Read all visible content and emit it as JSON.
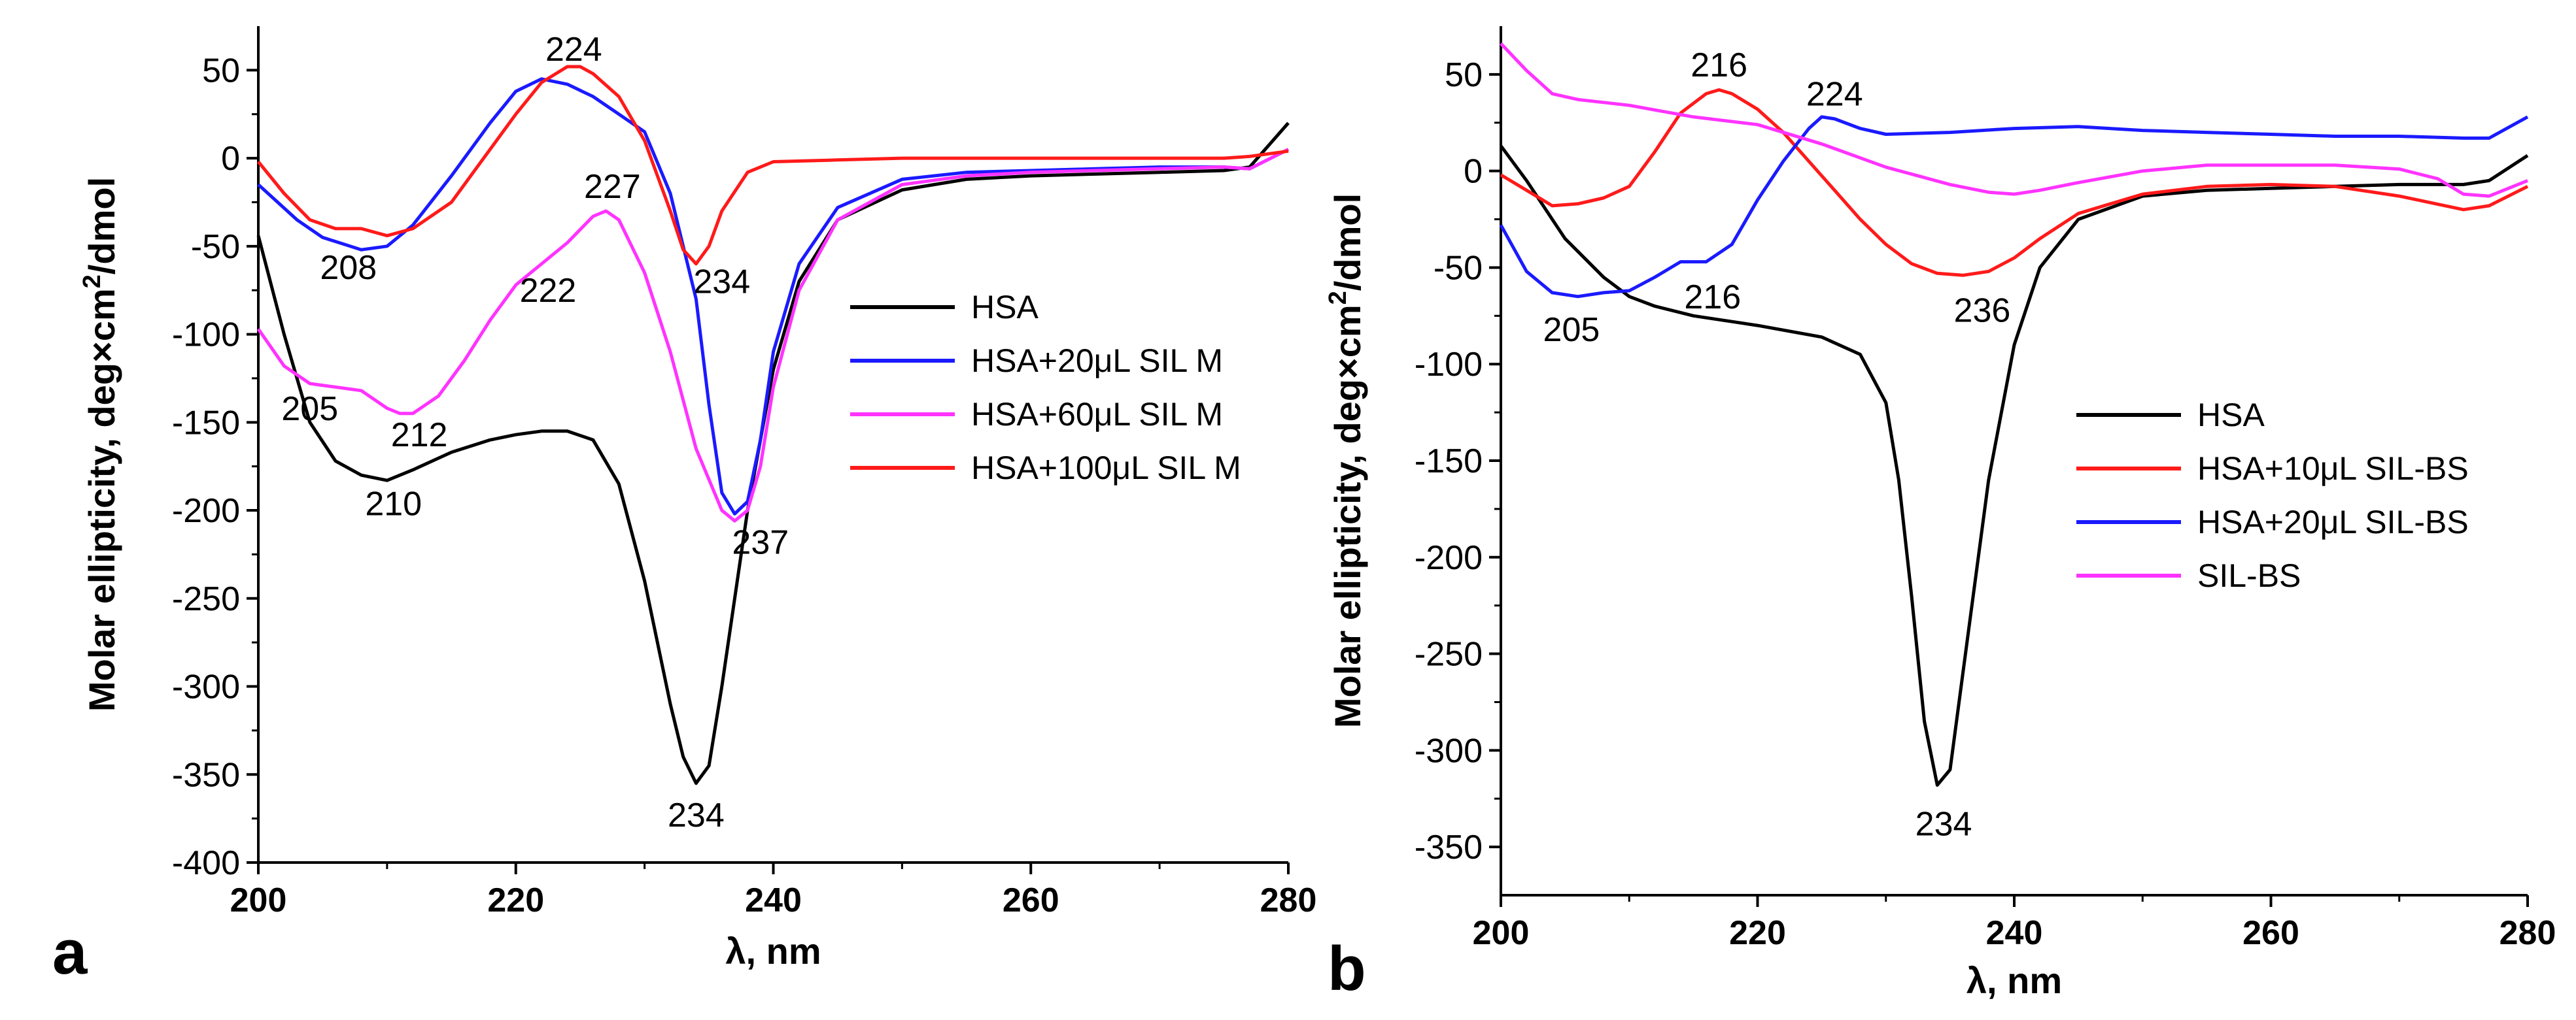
{
  "chart_data": [
    {
      "type": "line",
      "panel_label": "a",
      "title": "",
      "xlabel": "λ, nm",
      "ylabel_prefix": "Molar ellipticity, deg×cm",
      "ylabel_sup": "2",
      "ylabel_suffix": "/dmol",
      "xlim": [
        200,
        280
      ],
      "ylim": [
        -400,
        75
      ],
      "x_ticks": [
        200,
        220,
        240,
        260,
        280
      ],
      "y_ticks": [
        50,
        0,
        -50,
        -100,
        -150,
        -200,
        -250,
        -300,
        -350,
        -400
      ],
      "grid": false,
      "legend_position": "center-right",
      "series": [
        {
          "name": "HSA",
          "color": "#000000",
          "points": [
            [
              200,
              -44
            ],
            [
              202,
              -100
            ],
            [
              204,
              -150
            ],
            [
              206,
              -172
            ],
            [
              208,
              -180
            ],
            [
              210,
              -183
            ],
            [
              212,
              -177
            ],
            [
              215,
              -167
            ],
            [
              218,
              -160
            ],
            [
              220,
              -157
            ],
            [
              222,
              -155
            ],
            [
              224,
              -155
            ],
            [
              226,
              -160
            ],
            [
              228,
              -185
            ],
            [
              230,
              -240
            ],
            [
              232,
              -310
            ],
            [
              233,
              -340
            ],
            [
              234,
              -355
            ],
            [
              235,
              -345
            ],
            [
              236,
              -300
            ],
            [
              238,
              -200
            ],
            [
              240,
              -120
            ],
            [
              242,
              -70
            ],
            [
              245,
              -35
            ],
            [
              250,
              -18
            ],
            [
              255,
              -12
            ],
            [
              260,
              -10
            ],
            [
              265,
              -9
            ],
            [
              270,
              -8
            ],
            [
              275,
              -7
            ],
            [
              277,
              -5
            ],
            [
              280,
              20
            ]
          ]
        },
        {
          "name": "HSA+20μL SIL M",
          "color": "#1a1aff",
          "points": [
            [
              200,
              -15
            ],
            [
              203,
              -35
            ],
            [
              205,
              -45
            ],
            [
              208,
              -52
            ],
            [
              210,
              -50
            ],
            [
              212,
              -38
            ],
            [
              215,
              -10
            ],
            [
              218,
              20
            ],
            [
              220,
              38
            ],
            [
              222,
              45
            ],
            [
              224,
              42
            ],
            [
              226,
              35
            ],
            [
              228,
              25
            ],
            [
              230,
              15
            ],
            [
              232,
              -20
            ],
            [
              234,
              -80
            ],
            [
              235,
              -140
            ],
            [
              236,
              -190
            ],
            [
              237,
              -202
            ],
            [
              238,
              -195
            ],
            [
              239,
              -160
            ],
            [
              240,
              -110
            ],
            [
              242,
              -60
            ],
            [
              245,
              -28
            ],
            [
              250,
              -12
            ],
            [
              255,
              -8
            ],
            [
              260,
              -7
            ],
            [
              265,
              -6
            ],
            [
              270,
              -5
            ],
            [
              275,
              -5
            ],
            [
              277,
              -6
            ],
            [
              280,
              5
            ]
          ]
        },
        {
          "name": "HSA+60μL SIL M",
          "color": "#ff33ff",
          "points": [
            [
              200,
              -97
            ],
            [
              202,
              -118
            ],
            [
              204,
              -128
            ],
            [
              206,
              -130
            ],
            [
              208,
              -132
            ],
            [
              210,
              -142
            ],
            [
              211,
              -145
            ],
            [
              212,
              -145
            ],
            [
              214,
              -135
            ],
            [
              216,
              -115
            ],
            [
              218,
              -92
            ],
            [
              220,
              -72
            ],
            [
              222,
              -60
            ],
            [
              224,
              -48
            ],
            [
              226,
              -33
            ],
            [
              227,
              -30
            ],
            [
              228,
              -35
            ],
            [
              230,
              -65
            ],
            [
              232,
              -110
            ],
            [
              234,
              -165
            ],
            [
              236,
              -200
            ],
            [
              237,
              -206
            ],
            [
              238,
              -200
            ],
            [
              239,
              -175
            ],
            [
              240,
              -130
            ],
            [
              242,
              -75
            ],
            [
              245,
              -35
            ],
            [
              250,
              -15
            ],
            [
              255,
              -10
            ],
            [
              260,
              -8
            ],
            [
              265,
              -7
            ],
            [
              270,
              -6
            ],
            [
              275,
              -5
            ],
            [
              277,
              -6
            ],
            [
              280,
              5
            ]
          ]
        },
        {
          "name": "HSA+100μL SIL M",
          "color": "#ff1a1a",
          "points": [
            [
              200,
              -2
            ],
            [
              202,
              -20
            ],
            [
              204,
              -35
            ],
            [
              206,
              -40
            ],
            [
              208,
              -40
            ],
            [
              210,
              -44
            ],
            [
              212,
              -40
            ],
            [
              215,
              -25
            ],
            [
              218,
              5
            ],
            [
              220,
              25
            ],
            [
              222,
              43
            ],
            [
              224,
              52
            ],
            [
              225,
              52
            ],
            [
              226,
              48
            ],
            [
              228,
              35
            ],
            [
              230,
              10
            ],
            [
              232,
              -30
            ],
            [
              233,
              -52
            ],
            [
              234,
              -60
            ],
            [
              235,
              -50
            ],
            [
              236,
              -30
            ],
            [
              238,
              -8
            ],
            [
              240,
              -2
            ],
            [
              245,
              -1
            ],
            [
              250,
              0
            ],
            [
              260,
              0
            ],
            [
              270,
              0
            ],
            [
              275,
              0
            ],
            [
              277,
              1
            ],
            [
              280,
              4
            ]
          ]
        }
      ],
      "annotations": [
        {
          "text": "224",
          "x": 224.5,
          "y": 62
        },
        {
          "text": "208",
          "x": 207,
          "y": -62
        },
        {
          "text": "227",
          "x": 227.5,
          "y": -16
        },
        {
          "text": "222",
          "x": 222.5,
          "y": -75
        },
        {
          "text": "234",
          "x": 236,
          "y": -70
        },
        {
          "text": "205",
          "x": 204,
          "y": -142
        },
        {
          "text": "212",
          "x": 212.5,
          "y": -157
        },
        {
          "text": "210",
          "x": 210.5,
          "y": -196
        },
        {
          "text": "237",
          "x": 239,
          "y": -218
        },
        {
          "text": "234",
          "x": 234,
          "y": -373
        }
      ]
    },
    {
      "type": "line",
      "panel_label": "b",
      "title": "",
      "xlabel": "λ, nm",
      "ylabel_prefix": "Molar ellipticity, deg×cm",
      "ylabel_sup": "2",
      "ylabel_suffix": "/dmol",
      "xlim": [
        200,
        280
      ],
      "ylim": [
        -375,
        75
      ],
      "x_ticks": [
        200,
        220,
        240,
        260,
        280
      ],
      "y_ticks": [
        50,
        0,
        -50,
        -100,
        -150,
        -200,
        -250,
        -300,
        -350
      ],
      "grid": false,
      "legend_position": "center-right",
      "series": [
        {
          "name": "HSA",
          "color": "#000000",
          "points": [
            [
              200,
              13
            ],
            [
              202,
              -5
            ],
            [
              205,
              -35
            ],
            [
              208,
              -55
            ],
            [
              210,
              -65
            ],
            [
              212,
              -70
            ],
            [
              215,
              -75
            ],
            [
              220,
              -80
            ],
            [
              225,
              -86
            ],
            [
              228,
              -95
            ],
            [
              230,
              -120
            ],
            [
              231,
              -160
            ],
            [
              232,
              -220
            ],
            [
              233,
              -285
            ],
            [
              234,
              -318
            ],
            [
              235,
              -310
            ],
            [
              236,
              -260
            ],
            [
              238,
              -160
            ],
            [
              240,
              -90
            ],
            [
              242,
              -50
            ],
            [
              245,
              -25
            ],
            [
              250,
              -13
            ],
            [
              255,
              -10
            ],
            [
              260,
              -9
            ],
            [
              265,
              -8
            ],
            [
              270,
              -7
            ],
            [
              275,
              -7
            ],
            [
              277,
              -5
            ],
            [
              280,
              8
            ]
          ]
        },
        {
          "name": "HSA+10μL SIL-BS",
          "color": "#ff1a1a",
          "points": [
            [
              200,
              -2
            ],
            [
              202,
              -10
            ],
            [
              204,
              -18
            ],
            [
              206,
              -17
            ],
            [
              208,
              -14
            ],
            [
              210,
              -8
            ],
            [
              212,
              10
            ],
            [
              214,
              30
            ],
            [
              216,
              40
            ],
            [
              217,
              42
            ],
            [
              218,
              40
            ],
            [
              220,
              32
            ],
            [
              222,
              20
            ],
            [
              224,
              5
            ],
            [
              226,
              -10
            ],
            [
              228,
              -25
            ],
            [
              230,
              -38
            ],
            [
              232,
              -48
            ],
            [
              234,
              -53
            ],
            [
              236,
              -54
            ],
            [
              238,
              -52
            ],
            [
              240,
              -45
            ],
            [
              242,
              -35
            ],
            [
              245,
              -22
            ],
            [
              250,
              -12
            ],
            [
              255,
              -8
            ],
            [
              260,
              -7
            ],
            [
              265,
              -8
            ],
            [
              270,
              -13
            ],
            [
              275,
              -20
            ],
            [
              277,
              -18
            ],
            [
              280,
              -8
            ]
          ]
        },
        {
          "name": "HSA+20μL SIL-BS",
          "color": "#1a1aff",
          "points": [
            [
              200,
              -28
            ],
            [
              202,
              -52
            ],
            [
              204,
              -63
            ],
            [
              206,
              -65
            ],
            [
              208,
              -63
            ],
            [
              210,
              -62
            ],
            [
              212,
              -55
            ],
            [
              214,
              -47
            ],
            [
              216,
              -47
            ],
            [
              218,
              -38
            ],
            [
              220,
              -15
            ],
            [
              222,
              5
            ],
            [
              224,
              22
            ],
            [
              225,
              28
            ],
            [
              226,
              27
            ],
            [
              228,
              22
            ],
            [
              230,
              19
            ],
            [
              235,
              20
            ],
            [
              240,
              22
            ],
            [
              245,
              23
            ],
            [
              250,
              21
            ],
            [
              255,
              20
            ],
            [
              260,
              19
            ],
            [
              265,
              18
            ],
            [
              270,
              18
            ],
            [
              275,
              17
            ],
            [
              277,
              17
            ],
            [
              280,
              28
            ]
          ]
        },
        {
          "name": "SIL-BS",
          "color": "#ff33ff",
          "points": [
            [
              200,
              66
            ],
            [
              202,
              52
            ],
            [
              204,
              40
            ],
            [
              206,
              37
            ],
            [
              210,
              34
            ],
            [
              215,
              28
            ],
            [
              220,
              24
            ],
            [
              225,
              14
            ],
            [
              230,
              2
            ],
            [
              235,
              -7
            ],
            [
              238,
              -11
            ],
            [
              240,
              -12
            ],
            [
              242,
              -10
            ],
            [
              245,
              -6
            ],
            [
              250,
              0
            ],
            [
              255,
              3
            ],
            [
              260,
              3
            ],
            [
              265,
              3
            ],
            [
              270,
              1
            ],
            [
              273,
              -4
            ],
            [
              275,
              -12
            ],
            [
              277,
              -13
            ],
            [
              280,
              -5
            ]
          ]
        }
      ],
      "annotations": [
        {
          "text": "216",
          "x": 217,
          "y": 55
        },
        {
          "text": "224",
          "x": 226,
          "y": 40
        },
        {
          "text": "205",
          "x": 205.5,
          "y": -82
        },
        {
          "text": "216",
          "x": 216.5,
          "y": -65
        },
        {
          "text": "236",
          "x": 237.5,
          "y": -72
        },
        {
          "text": "234",
          "x": 234.5,
          "y": -338
        }
      ]
    }
  ]
}
